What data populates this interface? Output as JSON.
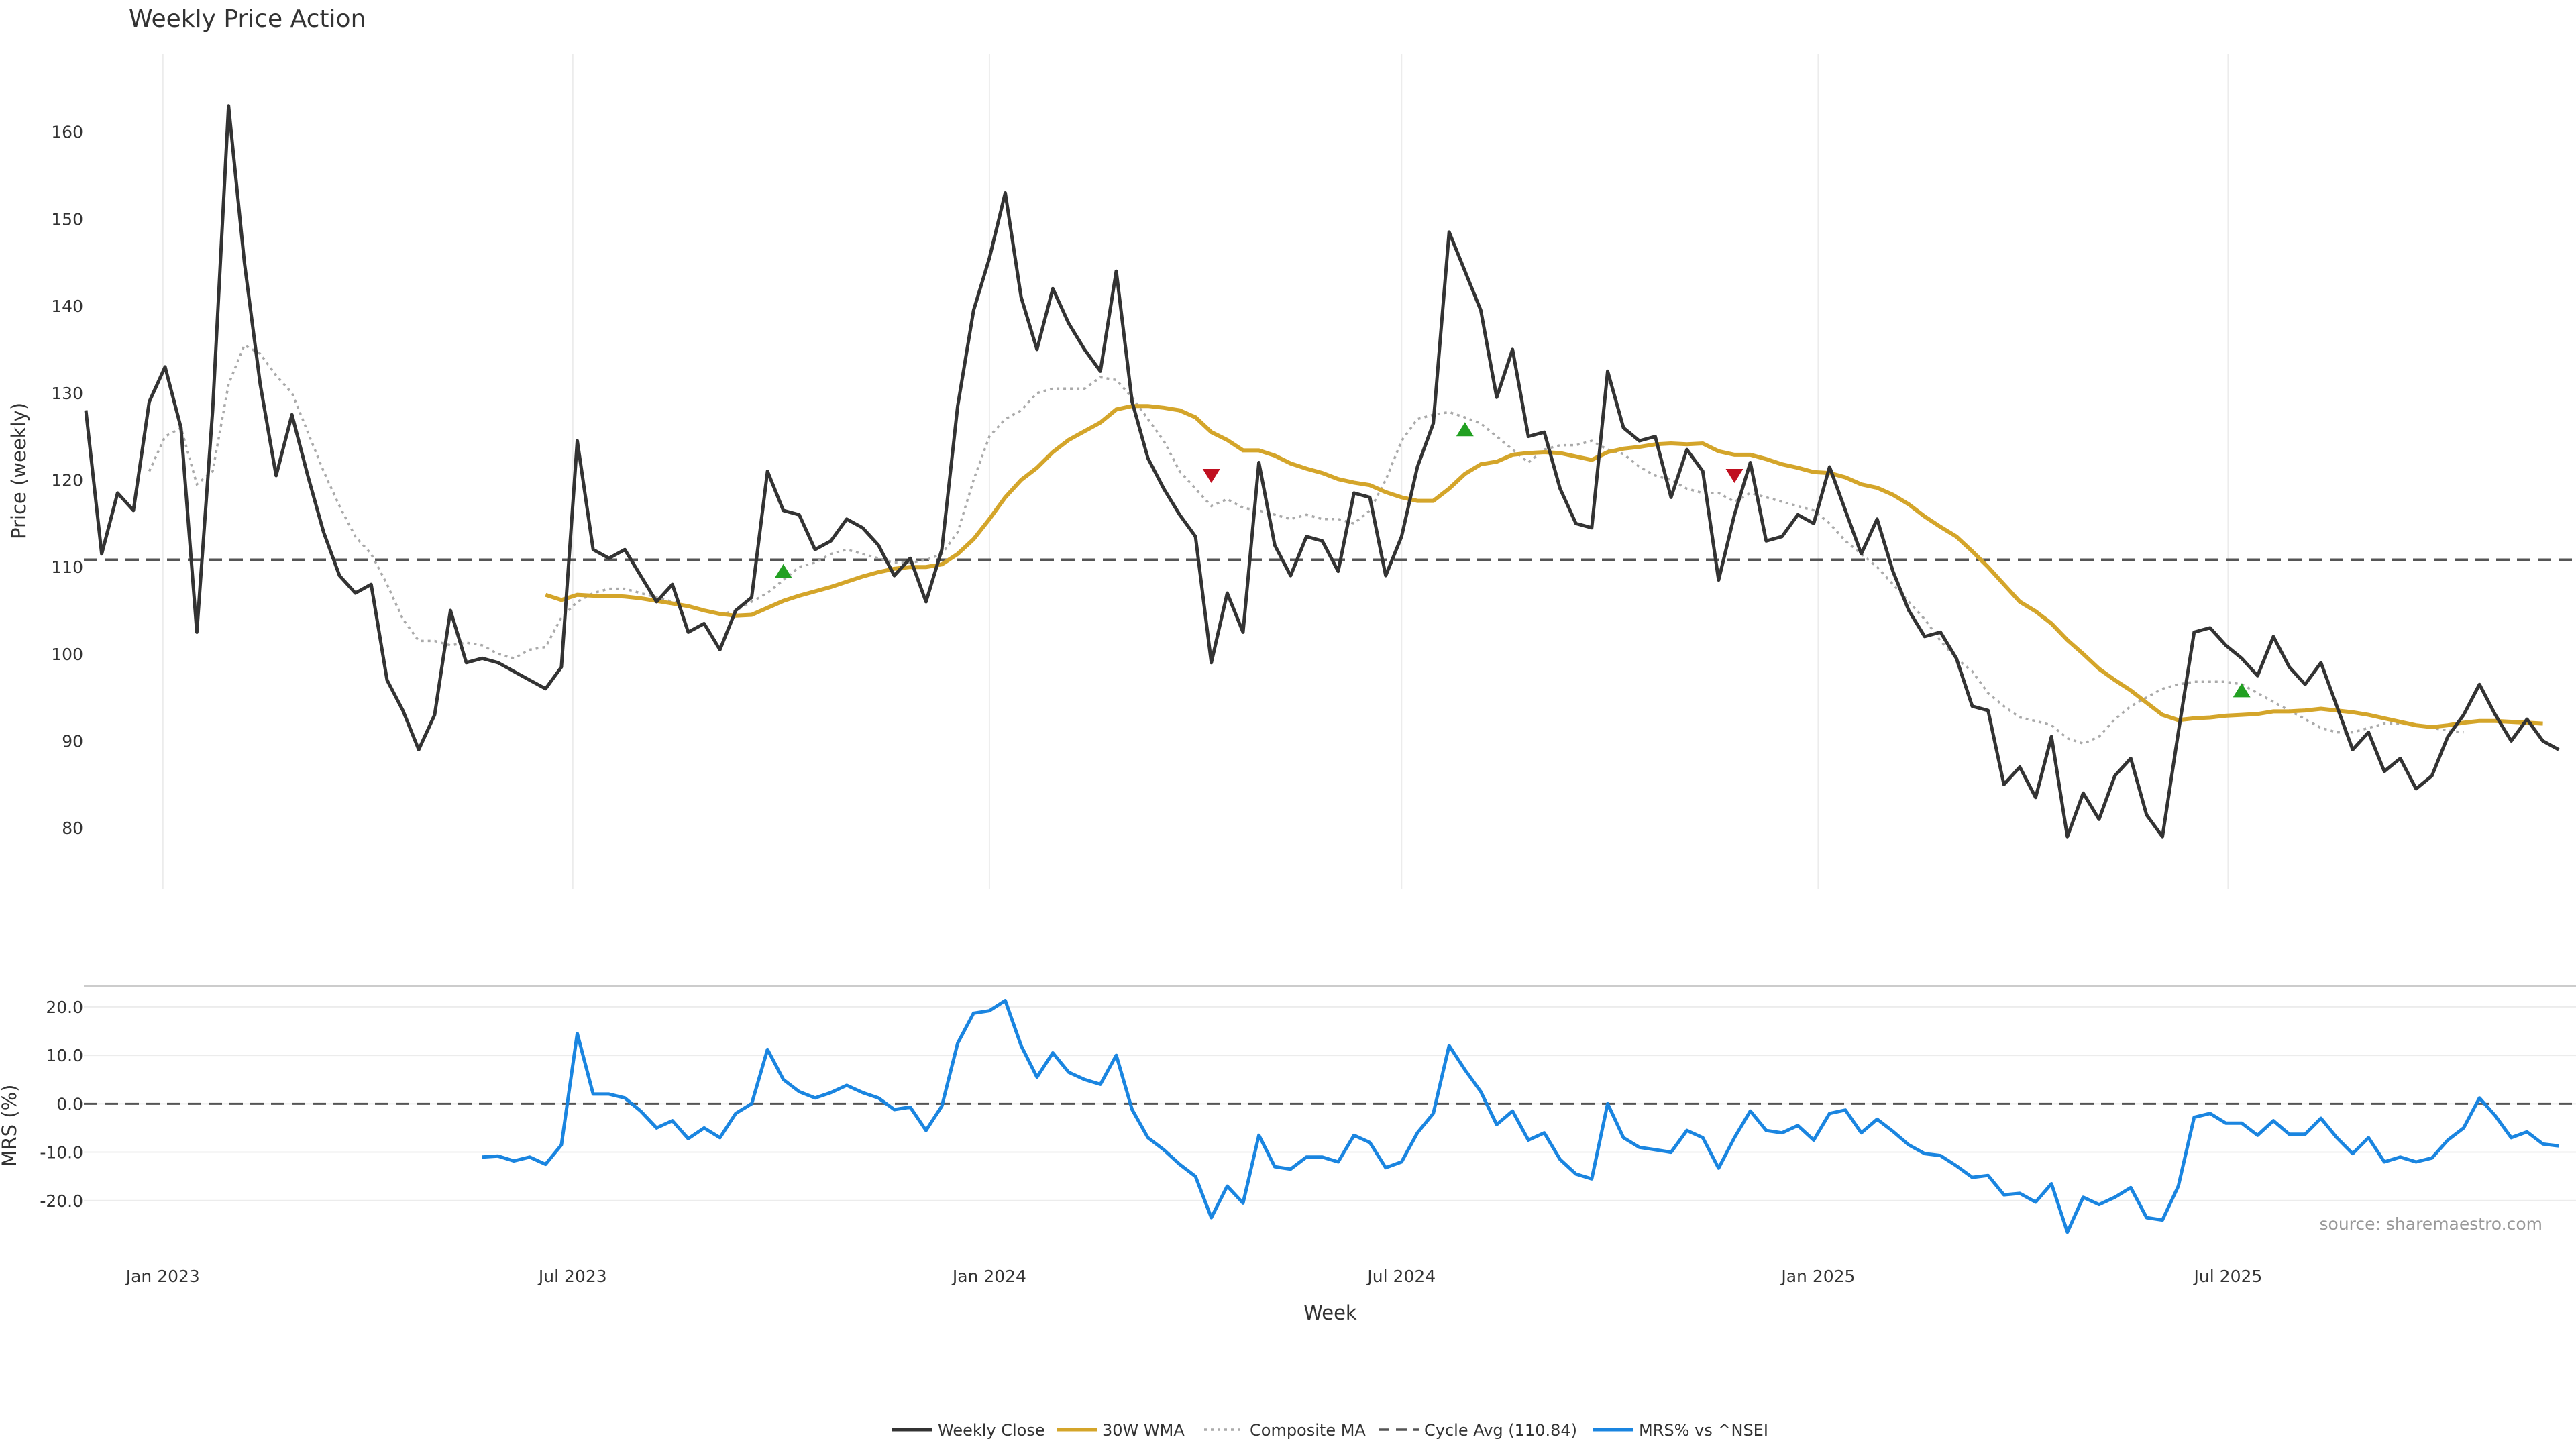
{
  "chart_data": [
    {
      "type": "line",
      "title": "Weekly Price Action",
      "ylabel": "Price (weekly)",
      "ylim": [
        73,
        169
      ],
      "yticks": [
        80,
        90,
        100,
        110,
        120,
        130,
        140,
        150,
        160
      ],
      "grid": "vertical",
      "x_start": "2022-11-28",
      "x_step": "1 week",
      "cycle_avg": 110.84,
      "series": [
        {
          "name": "Weekly Close",
          "color": "#333333",
          "values": [
            128,
            111.5,
            118.5,
            116.5,
            129,
            133,
            126,
            102.5,
            128,
            163,
            145,
            131,
            120.5,
            127.5,
            120.5,
            114,
            109,
            107,
            108,
            97,
            93.5,
            89,
            93,
            105,
            99,
            99.5,
            99,
            98,
            97,
            96,
            98.5,
            124.5,
            112,
            111,
            112,
            109,
            106,
            108,
            102.5,
            103.5,
            100.5,
            105,
            106.5,
            121,
            116.5,
            116,
            112,
            113,
            115.5,
            114.5,
            112.5,
            109,
            111,
            106,
            112,
            128.5,
            139.5,
            145.5,
            153,
            141,
            135,
            142,
            138,
            135,
            132.5,
            144,
            129,
            122.5,
            119,
            116,
            113.5,
            99,
            107,
            102.5,
            122,
            112.5,
            109,
            113.5,
            113,
            109.5,
            118.5,
            118,
            109,
            113.5,
            121.5,
            126.5,
            148.5,
            144,
            139.5,
            129.5,
            135,
            125,
            125.5,
            119,
            115,
            114.5,
            132.5,
            126,
            124.5,
            125,
            118,
            123.5,
            121,
            108.5,
            116,
            122,
            113,
            113.5,
            116,
            115,
            121.5,
            116.5,
            111.5,
            115.5,
            109.5,
            105,
            102,
            102.5,
            99.5,
            94,
            93.5,
            85,
            87,
            83.5,
            90.5,
            79,
            84,
            81,
            86,
            88,
            81.5,
            79,
            91,
            102.5,
            103,
            101,
            99.5,
            97.5,
            102,
            98.5,
            96.5,
            99,
            94,
            89,
            91,
            86.5,
            88,
            84.5,
            86,
            90.5,
            93,
            96.5,
            93,
            90,
            92.5,
            90,
            89
          ]
        },
        {
          "name": "30W WMA",
          "color": "#d4a52a",
          "values": [
            null,
            null,
            null,
            null,
            null,
            null,
            null,
            null,
            null,
            null,
            null,
            null,
            null,
            null,
            null,
            null,
            null,
            null,
            null,
            null,
            null,
            null,
            null,
            null,
            null,
            null,
            null,
            null,
            null,
            106.8,
            106.2,
            106.8,
            106.7,
            106.7,
            106.6,
            106.4,
            106.1,
            105.8,
            105.5,
            105,
            104.6,
            104.4,
            104.5,
            105.3,
            106.1,
            106.7,
            107.2,
            107.7,
            108.3,
            108.9,
            109.4,
            109.8,
            110,
            110,
            110.3,
            111.5,
            113.2,
            115.5,
            118,
            120,
            121.4,
            123.2,
            124.6,
            125.6,
            126.6,
            128.1,
            128.5,
            128.5,
            128.3,
            128,
            127.2,
            125.5,
            124.6,
            123.4,
            123.4,
            122.8,
            121.9,
            121.3,
            120.8,
            120.1,
            119.7,
            119.4,
            118.6,
            118,
            117.6,
            117.6,
            119,
            120.7,
            121.8,
            122.1,
            122.9,
            123.1,
            123.2,
            123.1,
            122.7,
            122.3,
            123.2,
            123.6,
            123.8,
            124.1,
            124.2,
            124.1,
            124.2,
            123.3,
            122.9,
            122.9,
            122.4,
            121.8,
            121.4,
            120.9,
            120.8,
            120.3,
            119.5,
            119.1,
            118.3,
            117.2,
            115.8,
            114.6,
            113.5,
            111.8,
            110,
            108,
            106,
            104.9,
            103.5,
            101.6,
            100,
            98.3,
            97,
            95.8,
            94.4,
            93,
            92.4,
            92.6,
            92.7,
            92.9,
            93,
            93.1,
            93.4,
            93.4,
            93.5,
            93.7,
            93.5,
            93.3,
            93,
            92.6,
            92.2,
            91.8,
            91.6,
            91.8,
            92.1,
            92.3,
            92.3,
            92.2,
            92.1,
            92
          ]
        },
        {
          "name": "Composite MA",
          "color": "#aaaaaa",
          "values": [
            null,
            null,
            null,
            null,
            121,
            125,
            126,
            119.5,
            121,
            131,
            135.5,
            134.5,
            132,
            130,
            125.5,
            121,
            117,
            113.5,
            111.5,
            108,
            104,
            101.5,
            101.5,
            101,
            101.3,
            101,
            100,
            99.5,
            100.5,
            100.8,
            104.2,
            106,
            107,
            107.5,
            107.5,
            107,
            106.5,
            106,
            105.5,
            105,
            104.5,
            105,
            106,
            107,
            108.5,
            110,
            110.5,
            111.5,
            112,
            111.5,
            111,
            110.5,
            110.5,
            110.8,
            111.5,
            114,
            120,
            125,
            127,
            128,
            130,
            130.5,
            130.5,
            130.5,
            131.8,
            131.5,
            129.5,
            127,
            124.5,
            121,
            119,
            117,
            117.8,
            116.8,
            116.5,
            116,
            115.5,
            116,
            115.5,
            115.5,
            115,
            116.5,
            120,
            124.5,
            127,
            127.5,
            127.8,
            127.2,
            126.5,
            125,
            123.5,
            122,
            123.5,
            124,
            124,
            124.5,
            123.5,
            123,
            121.5,
            120.5,
            120,
            119,
            118.5,
            118.5,
            117.5,
            118.5,
            118,
            117.5,
            117,
            116.5,
            115,
            113,
            111.5,
            110,
            108,
            106,
            104,
            101.5,
            99.5,
            98,
            95.5,
            94,
            92.7,
            92.3,
            91.8,
            90.3,
            89.7,
            90.5,
            92.5,
            94,
            95,
            96,
            96.5,
            96.8,
            96.8,
            96.8,
            96.5,
            95.5,
            94.5,
            93.5,
            92.5,
            91.5,
            91,
            91,
            91.5,
            92,
            92,
            91.8,
            91.5,
            91.2,
            91
          ]
        }
      ],
      "signals": [
        {
          "type": "buy",
          "week": 44,
          "value": 109.5
        },
        {
          "type": "buy",
          "week": 87,
          "value": 125.8
        },
        {
          "type": "buy",
          "week": 136,
          "value": 95.8
        },
        {
          "type": "sell",
          "week": 71,
          "value": 120.5
        },
        {
          "type": "sell",
          "week": 104,
          "value": 120.5
        }
      ]
    },
    {
      "type": "line",
      "ylabel": "MRS (%)",
      "xlabel": "Week",
      "ylim": [
        -30,
        24
      ],
      "yticks": [
        "20.0",
        "10.0",
        "0.0",
        "-10.0",
        "-20.0"
      ],
      "x_ticks": [
        "Jan 2023",
        "Jul 2023",
        "Jan 2024",
        "Jul 2024",
        "Jan 2025",
        "Jul 2025"
      ],
      "series": [
        {
          "name": "MRS% vs ^NSEI",
          "color": "#1a85e0",
          "values": [
            null,
            null,
            null,
            null,
            null,
            null,
            null,
            null,
            null,
            null,
            null,
            null,
            null,
            null,
            null,
            null,
            null,
            null,
            null,
            null,
            null,
            null,
            null,
            null,
            null,
            -11,
            -10.8,
            -11.8,
            -11,
            -12.5,
            -8.5,
            14.5,
            2,
            2,
            1.2,
            -1.5,
            -5,
            -3.5,
            -7.2,
            -5,
            -7,
            -2,
            0,
            11.2,
            5,
            2.5,
            1.2,
            2.3,
            3.8,
            2.3,
            1.2,
            -1.2,
            -0.7,
            -5.5,
            -0.5,
            12.5,
            18.7,
            19.2,
            21.3,
            12,
            5.5,
            10.5,
            6.5,
            5,
            4,
            10,
            -1.2,
            -7,
            -9.5,
            -12.5,
            -15,
            -23.5,
            -17,
            -20.5,
            -6.5,
            -13,
            -13.5,
            -11,
            -11,
            -12,
            -6.5,
            -8,
            -13.2,
            -12,
            -6,
            -2,
            12,
            7,
            2.5,
            -4.3,
            -1.5,
            -7.5,
            -6,
            -11.5,
            -14.5,
            -15.5,
            0,
            -7,
            -9,
            -9.5,
            -10,
            -5.5,
            -7,
            -13.3,
            -7,
            -1.5,
            -5.5,
            -6,
            -4.5,
            -7.5,
            -2,
            -1.3,
            -6,
            -3.2,
            -5.7,
            -8.5,
            -10.3,
            -10.7,
            -12.8,
            -15.2,
            -14.8,
            -18.8,
            -18.5,
            -20.3,
            -16.5,
            -26.5,
            -19.3,
            -20.8,
            -19.3,
            -17.3,
            -23.5,
            -24,
            -17,
            -2.8,
            -2,
            -4,
            -4,
            -6.5,
            -3.5,
            -6.3,
            -6.3,
            -3,
            -7,
            -10.3,
            -7,
            -12,
            -11,
            -12,
            -11.2,
            -7.5,
            -5,
            1.2,
            -2.5,
            -7,
            -5.8,
            -8.3,
            -8.7
          ]
        }
      ],
      "source": "source: sharemaestro.com"
    }
  ],
  "legend": [
    {
      "label": "Weekly Close",
      "style": "solid",
      "color": "#333333"
    },
    {
      "label": "30W WMA",
      "style": "solid",
      "color": "#d4a52a"
    },
    {
      "label": "Composite MA",
      "style": "dotted",
      "color": "#aaaaaa"
    },
    {
      "label": "Cycle Avg (110.84)",
      "style": "dashed",
      "color": "#555555"
    },
    {
      "label": "MRS% vs ^NSEI",
      "style": "solid",
      "color": "#1a85e0"
    }
  ],
  "colors": {
    "buy_marker": "#22a022",
    "sell_marker": "#c01020",
    "gridline": "#ececec",
    "zero_line": "#555555"
  }
}
